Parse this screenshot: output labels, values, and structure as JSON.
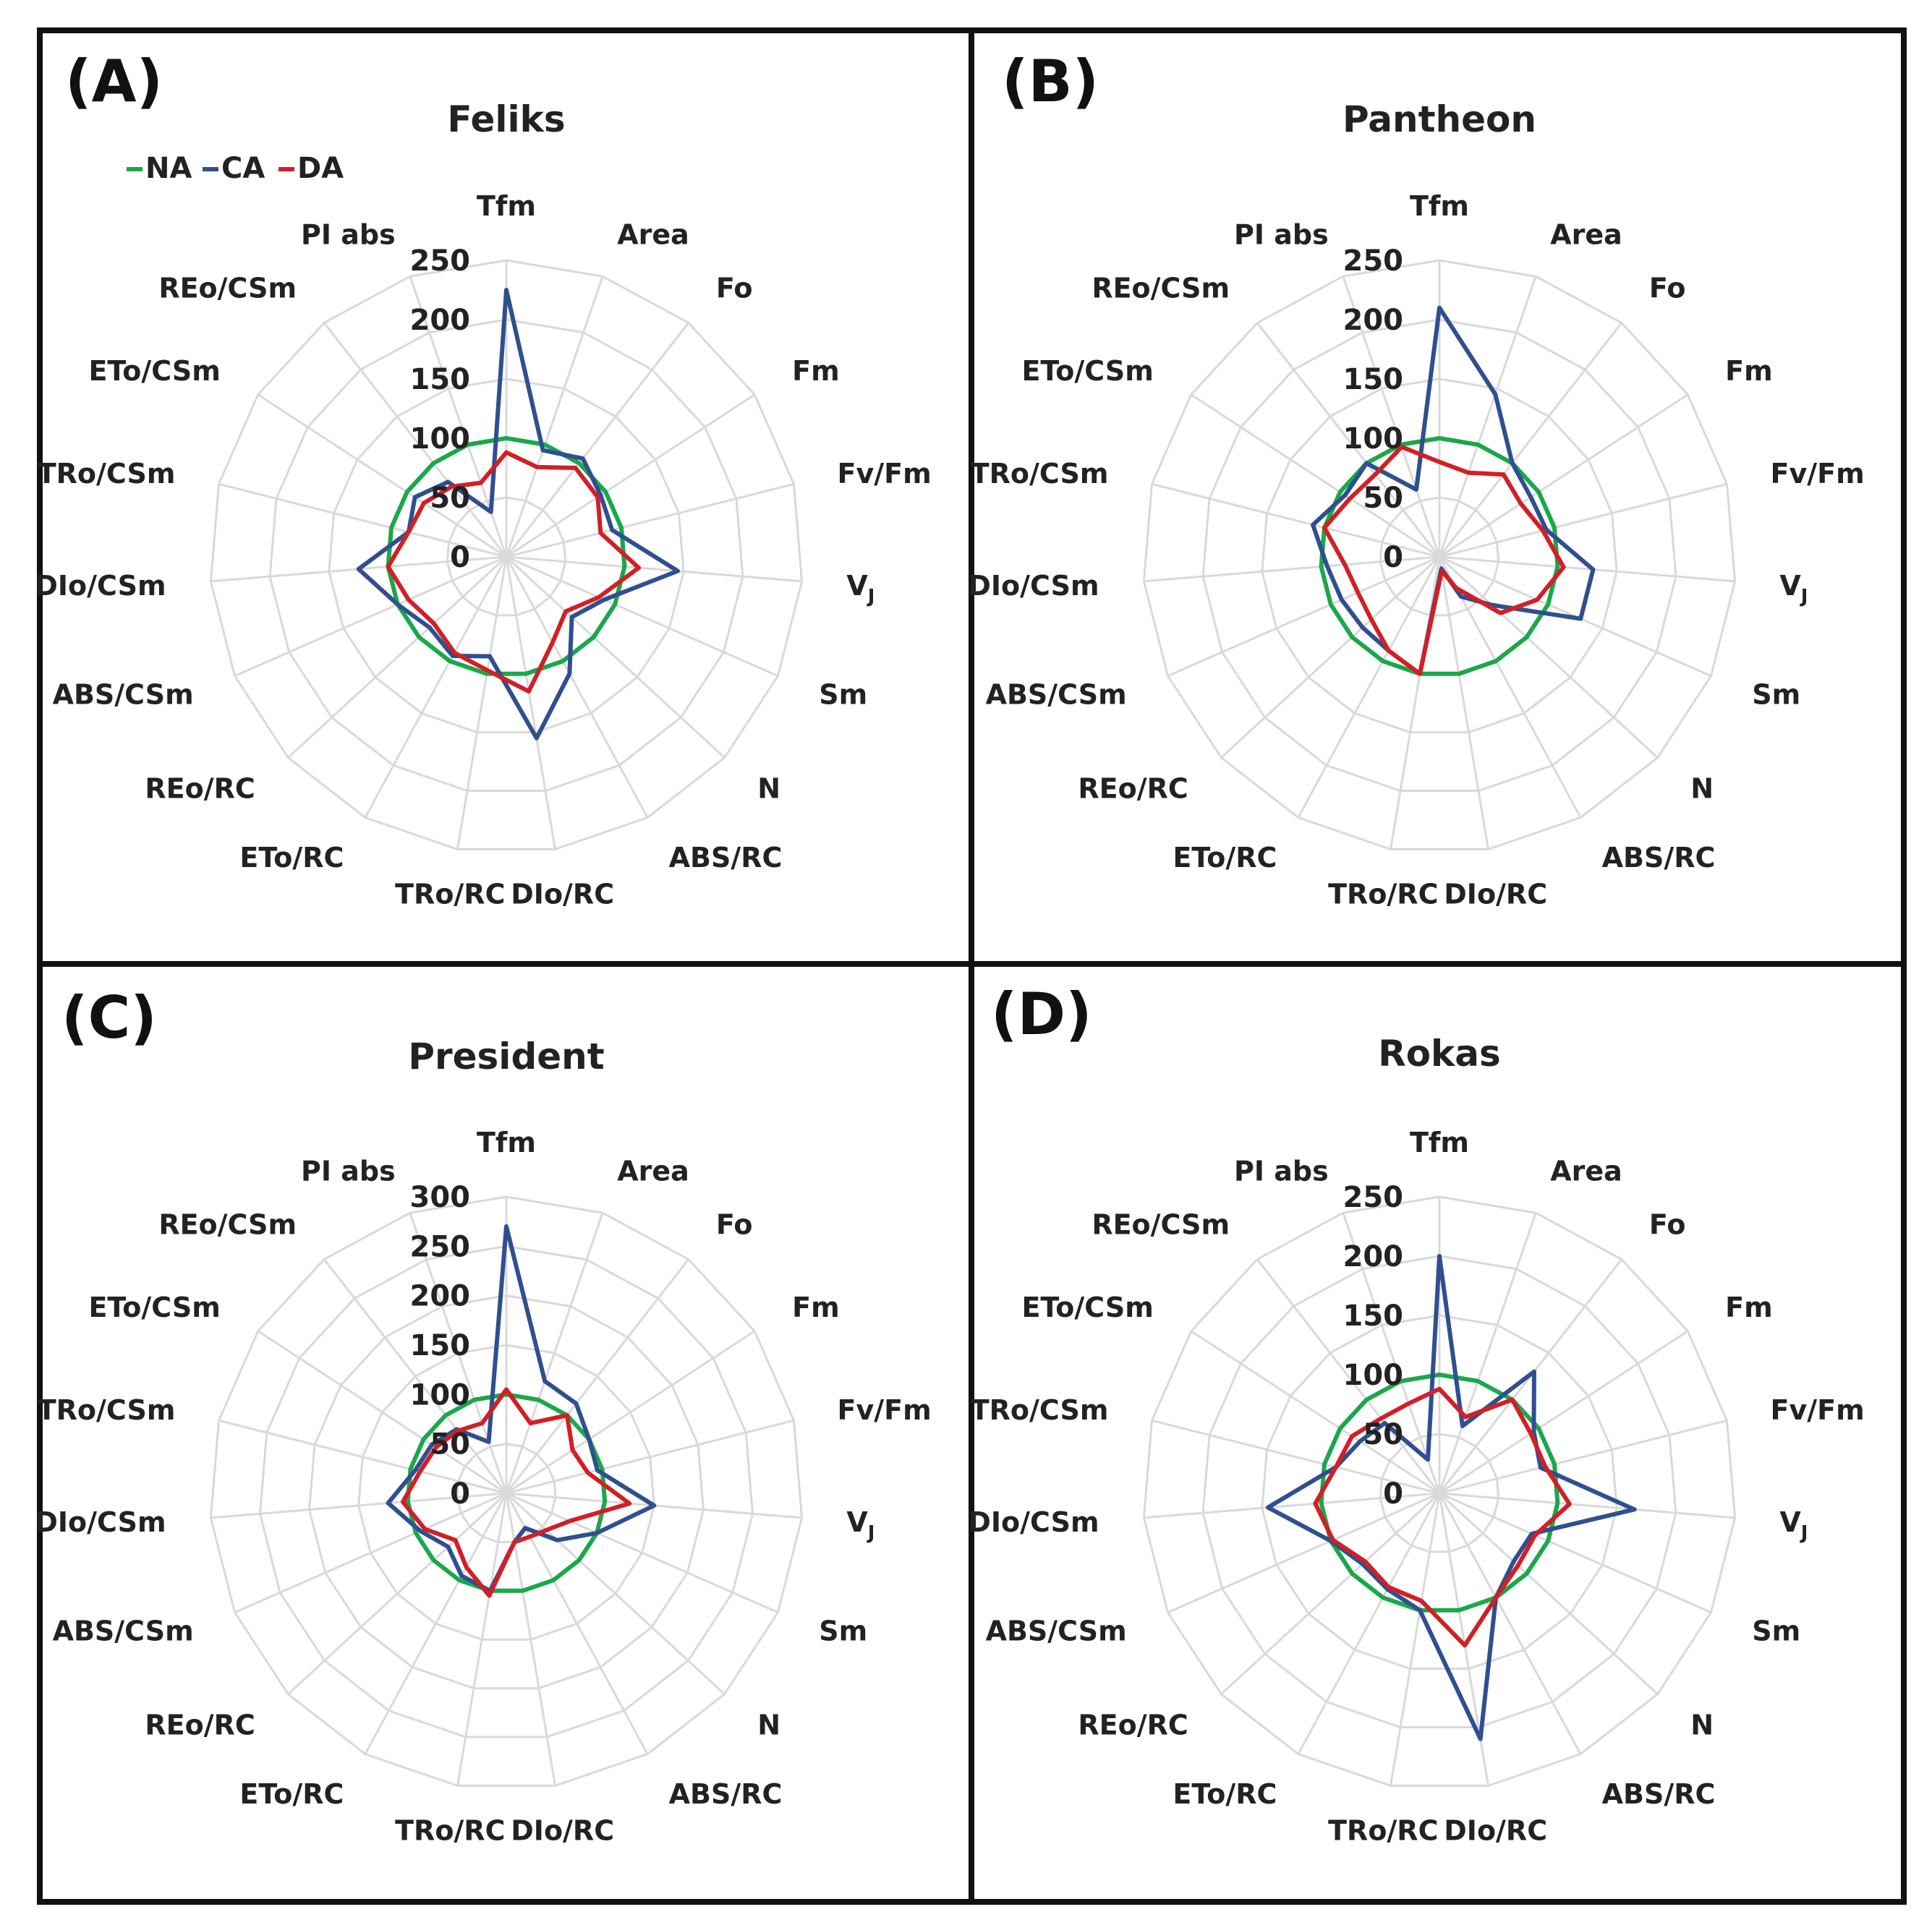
{
  "legend": [
    {
      "name": "NA",
      "color": "#1aa84a"
    },
    {
      "name": "CA",
      "color": "#2f4f8f"
    },
    {
      "name": "DA",
      "color": "#d21f26"
    }
  ],
  "axes": [
    "Tfm",
    "Area",
    "Fo",
    "Fm",
    "Fv/Fm",
    "VJ",
    "Sm",
    "N",
    "ABS/RC",
    "DIo/RC",
    "TRo/RC",
    "ETo/RC",
    "REo/RC",
    "ABS/CSm",
    "DIo/CSm",
    "TRo/CSm",
    "ETo/CSm",
    "REo/CSm",
    "PI abs"
  ],
  "chart_data": [
    {
      "type": "radar",
      "panel": "(A)",
      "title": "Feliks",
      "ticks": [
        0,
        50,
        100,
        150,
        200,
        250
      ],
      "rmax": 250,
      "series": [
        {
          "name": "NA",
          "values": [
            100,
            100,
            100,
            100,
            100,
            100,
            100,
            100,
            100,
            100,
            100,
            100,
            100,
            100,
            100,
            100,
            100,
            100,
            100
          ]
        },
        {
          "name": "CA",
          "values": [
            225,
            95,
            105,
            95,
            92,
            145,
            90,
            75,
            112,
            155,
            85,
            95,
            88,
            100,
            125,
            85,
            92,
            80,
            40
          ]
        },
        {
          "name": "DA",
          "values": [
            88,
            80,
            95,
            92,
            82,
            112,
            85,
            68,
            82,
            115,
            97,
            92,
            83,
            90,
            100,
            85,
            83,
            75,
            66
          ]
        }
      ]
    },
    {
      "type": "radar",
      "panel": "(B)",
      "title": "Pantheon",
      "ticks": [
        0,
        50,
        100,
        150,
        200,
        250
      ],
      "rmax": 250,
      "series": [
        {
          "name": "NA",
          "values": [
            100,
            100,
            100,
            100,
            100,
            100,
            100,
            100,
            100,
            100,
            100,
            100,
            100,
            100,
            100,
            100,
            100,
            100,
            100
          ]
        },
        {
          "name": "CA",
          "values": [
            210,
            145,
            100,
            92,
            93,
            130,
            130,
            60,
            38,
            10,
            100,
            90,
            88,
            90,
            95,
            110,
            95,
            100,
            60
          ]
        },
        {
          "name": "DA",
          "values": [
            80,
            75,
            88,
            82,
            90,
            105,
            90,
            70,
            30,
            12,
            100,
            90,
            78,
            75,
            80,
            100,
            90,
            88,
            98
          ]
        }
      ]
    },
    {
      "type": "radar",
      "panel": "(C)",
      "title": "President",
      "ticks": [
        0,
        50,
        100,
        150,
        200,
        250,
        300
      ],
      "rmax": 300,
      "series": [
        {
          "name": "NA",
          "values": [
            100,
            100,
            100,
            100,
            100,
            100,
            100,
            100,
            100,
            100,
            100,
            100,
            100,
            100,
            100,
            100,
            100,
            100,
            100
          ]
        },
        {
          "name": "CA",
          "values": [
            270,
            120,
            115,
            100,
            95,
            150,
            100,
            70,
            40,
            50,
            100,
            95,
            80,
            95,
            120,
            95,
            90,
            82,
            55
          ]
        },
        {
          "name": "DA",
          "values": [
            105,
            75,
            100,
            80,
            85,
            125,
            70,
            55,
            50,
            50,
            105,
            85,
            70,
            90,
            105,
            90,
            85,
            80,
            75
          ]
        }
      ]
    },
    {
      "type": "radar",
      "panel": "(D)",
      "title": "Rokas",
      "ticks": [
        0,
        50,
        100,
        150,
        200,
        250
      ],
      "rmax": 250,
      "series": [
        {
          "name": "NA",
          "values": [
            100,
            100,
            100,
            100,
            100,
            100,
            100,
            100,
            100,
            100,
            100,
            100,
            100,
            100,
            100,
            100,
            100,
            100,
            100
          ]
        },
        {
          "name": "CA",
          "values": [
            200,
            60,
            130,
            95,
            88,
            165,
            85,
            85,
            100,
            210,
            100,
            92,
            88,
            100,
            145,
            90,
            80,
            75,
            30
          ]
        },
        {
          "name": "DA",
          "values": [
            88,
            68,
            100,
            92,
            92,
            110,
            88,
            90,
            100,
            130,
            92,
            90,
            85,
            98,
            105,
            90,
            88,
            80,
            80
          ]
        }
      ]
    }
  ]
}
